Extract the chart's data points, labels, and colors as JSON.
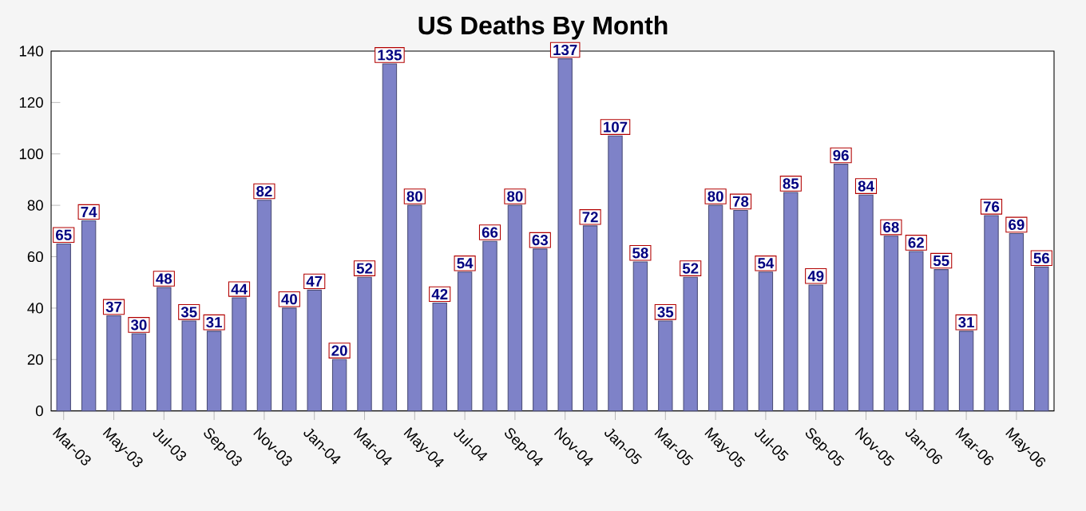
{
  "chart_data": {
    "type": "bar",
    "title": "US Deaths By Month",
    "categories": [
      "Mar-03",
      null,
      "May-03",
      null,
      "Jul-03",
      null,
      "Sep-03",
      null,
      "Nov-03",
      null,
      "Jan-04",
      null,
      "Mar-04",
      null,
      "May-04",
      null,
      "Jul-04",
      null,
      "Sep-04",
      null,
      "Nov-04",
      null,
      "Jan-05",
      null,
      "Mar-05",
      null,
      "May-05",
      null,
      "Jul-05",
      null,
      "Sep-05",
      null,
      "Nov-05",
      null,
      "Jan-06",
      null,
      "Mar-06",
      null,
      "May-06",
      null
    ],
    "values": [
      65,
      74,
      37,
      30,
      48,
      35,
      31,
      44,
      82,
      40,
      47,
      20,
      52,
      135,
      80,
      42,
      54,
      66,
      80,
      63,
      137,
      72,
      107,
      58,
      35,
      52,
      80,
      78,
      54,
      85,
      49,
      96,
      84,
      68,
      62,
      55,
      31,
      76,
      69,
      56
    ],
    "color": "#7e82c8",
    "ylim": [
      0,
      140
    ],
    "yticks": [
      0,
      20,
      40,
      60,
      80,
      100,
      120,
      140
    ],
    "data_labels": true
  }
}
